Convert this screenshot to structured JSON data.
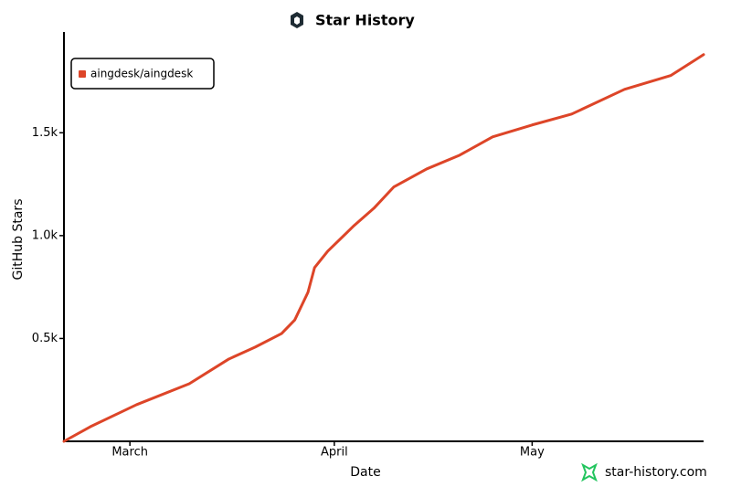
{
  "chart_data": {
    "type": "line",
    "title": "Star History",
    "xlabel": "Date",
    "ylabel": "GitHub Stars",
    "footer": "star-history.com",
    "x": [
      0,
      4,
      11,
      19,
      25,
      29,
      33,
      35,
      37,
      38,
      40,
      44,
      47,
      50,
      55,
      60,
      65,
      71,
      77,
      85,
      92,
      97
    ],
    "series": [
      {
        "name": "aingdesk/aingdesk",
        "color": "#dd4528",
        "values": [
          0,
          71,
          178,
          280,
          400,
          458,
          524,
          590,
          724,
          844,
          924,
          1049,
          1133,
          1236,
          1324,
          1391,
          1480,
          1538,
          1591,
          1711,
          1778,
          1880
        ]
      }
    ],
    "xlim": [
      0,
      97
    ],
    "xticks": [
      {
        "value": 10,
        "label": "March"
      },
      {
        "value": 41,
        "label": "April"
      },
      {
        "value": 71,
        "label": "May"
      }
    ],
    "ylim": [
      0,
      1990
    ],
    "yticks": [
      {
        "value": 500,
        "label": "0.5k"
      },
      {
        "value": 1000,
        "label": "1.0k"
      },
      {
        "value": 1500,
        "label": "1.5k"
      }
    ],
    "legend": "top-left"
  }
}
